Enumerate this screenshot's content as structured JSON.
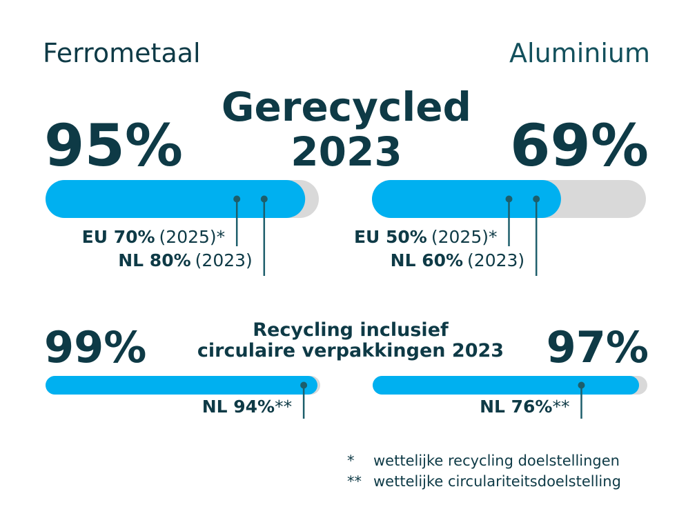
{
  "materials": [
    "Ferrometaal",
    "Aluminium"
  ],
  "sections": [
    {
      "title": [
        "Gerecycled",
        "2023"
      ],
      "bars": [
        {
          "value": 95,
          "value_label": "95%",
          "targets": [
            {
              "label": "EU 70%",
              "note": "(2025)*",
              "value": 70
            },
            {
              "label": "NL 80%",
              "note": "(2023)",
              "value": 80
            }
          ]
        },
        {
          "value": 69,
          "value_label": "69%",
          "targets": [
            {
              "label": "EU 50%",
              "note": "(2025)*",
              "value": 50
            },
            {
              "label": "NL 60%",
              "note": "(2023)",
              "value": 60
            }
          ]
        }
      ]
    },
    {
      "title": [
        "Recycling inclusief",
        "circulaire verpakkingen 2023"
      ],
      "bars": [
        {
          "value": 99,
          "value_label": "99%",
          "targets": [
            {
              "label": "NL 94%",
              "note": "**",
              "value": 94
            }
          ]
        },
        {
          "value": 97,
          "value_label": "97%",
          "targets": [
            {
              "label": "NL 76%",
              "note": "**",
              "value": 76
            }
          ]
        }
      ]
    }
  ],
  "scale": [
    0,
    100
  ],
  "footnotes": [
    {
      "mark": "*",
      "text": "wettelijke recycling doelstellingen"
    },
    {
      "mark": "**",
      "text": "wettelijke circulariteitsdoelstelling"
    }
  ]
}
